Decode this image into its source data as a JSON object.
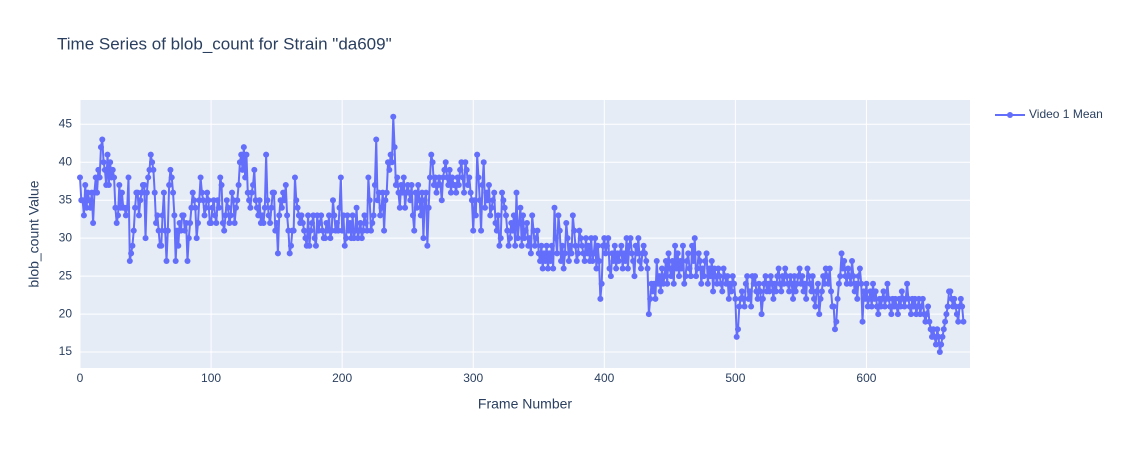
{
  "chart_data": {
    "type": "line",
    "title": "Time Series of blob_count for Strain \"da609\"",
    "x_label": "Frame Number",
    "y_label": "blob_count Value",
    "x": [
      0,
      1,
      2,
      3,
      4,
      5,
      6,
      7,
      8,
      9,
      10,
      11,
      12,
      13,
      14,
      15,
      16,
      17,
      18,
      19,
      20,
      21,
      22,
      23,
      24,
      25,
      26,
      27,
      28,
      29,
      30,
      31,
      32,
      33,
      34,
      35,
      36,
      37,
      38,
      39,
      40,
      41,
      42,
      43,
      44,
      45,
      46,
      47,
      48,
      49,
      50,
      51,
      52,
      53,
      54,
      55,
      56,
      57,
      58,
      59,
      60,
      61,
      62,
      63,
      64,
      65,
      66,
      67,
      68,
      69,
      70,
      71,
      72,
      73,
      74,
      75,
      76,
      77,
      78,
      79,
      80,
      81,
      82,
      83,
      84,
      85,
      86,
      87,
      88,
      89,
      90,
      91,
      92,
      93,
      94,
      95,
      96,
      97,
      98,
      99,
      100,
      101,
      102,
      103,
      104,
      105,
      106,
      107,
      108,
      109,
      110,
      111,
      112,
      113,
      114,
      115,
      116,
      117,
      118,
      119,
      120,
      121,
      122,
      123,
      124,
      125,
      126,
      127,
      128,
      129,
      130,
      131,
      132,
      133,
      134,
      135,
      136,
      137,
      138,
      139,
      140,
      141,
      142,
      143,
      144,
      145,
      146,
      147,
      148,
      149,
      150,
      151,
      152,
      153,
      154,
      155,
      156,
      157,
      158,
      159,
      160,
      161,
      162,
      163,
      164,
      165,
      166,
      167,
      168,
      169,
      170,
      171,
      172,
      173,
      174,
      175,
      176,
      177,
      178,
      179,
      180,
      181,
      182,
      183,
      184,
      185,
      186,
      187,
      188,
      189,
      190,
      191,
      192,
      193,
      194,
      195,
      196,
      197,
      198,
      199,
      200,
      201,
      202,
      203,
      204,
      205,
      206,
      207,
      208,
      209,
      210,
      211,
      212,
      213,
      214,
      215,
      216,
      217,
      218,
      219,
      220,
      221,
      222,
      223,
      224,
      225,
      226,
      227,
      228,
      229,
      230,
      231,
      232,
      233,
      234,
      235,
      236,
      237,
      238,
      239,
      240,
      241,
      242,
      243,
      244,
      245,
      246,
      247,
      248,
      249,
      250,
      251,
      252,
      253,
      254,
      255,
      256,
      257,
      258,
      259,
      260,
      261,
      262,
      263,
      264,
      265,
      266,
      267,
      268,
      269,
      270,
      271,
      272,
      273,
      274,
      275,
      276,
      277,
      278,
      279,
      280,
      281,
      282,
      283,
      284,
      285,
      286,
      287,
      288,
      289,
      290,
      291,
      292,
      293,
      294,
      295,
      296,
      297,
      298,
      299,
      300,
      301,
      302,
      303,
      304,
      305,
      306,
      307,
      308,
      309,
      310,
      311,
      312,
      313,
      314,
      315,
      316,
      317,
      318,
      319,
      320,
      321,
      322,
      323,
      324,
      325,
      326,
      327,
      328,
      329,
      330,
      331,
      332,
      333,
      334,
      335,
      336,
      337,
      338,
      339,
      340,
      341,
      342,
      343,
      344,
      345,
      346,
      347,
      348,
      349,
      350,
      351,
      352,
      353,
      354,
      355,
      356,
      357,
      358,
      359,
      360,
      361,
      362,
      363,
      364,
      365,
      366,
      367,
      368,
      369,
      370,
      371,
      372,
      373,
      374,
      375,
      376,
      377,
      378,
      379,
      380,
      381,
      382,
      383,
      384,
      385,
      386,
      387,
      388,
      389,
      390,
      391,
      392,
      393,
      394,
      395,
      396,
      397,
      398,
      399,
      400,
      401,
      402,
      403,
      404,
      405,
      406,
      407,
      408,
      409,
      410,
      411,
      412,
      413,
      414,
      415,
      416,
      417,
      418,
      419,
      420,
      421,
      422,
      423,
      424,
      425,
      426,
      427,
      428,
      429,
      430,
      431,
      432,
      433,
      434,
      435,
      436,
      437,
      438,
      439,
      440,
      441,
      442,
      443,
      444,
      445,
      446,
      447,
      448,
      449,
      450,
      451,
      452,
      453,
      454,
      455,
      456,
      457,
      458,
      459,
      460,
      461,
      462,
      463,
      464,
      465,
      466,
      467,
      468,
      469,
      470,
      471,
      472,
      473,
      474,
      475,
      476,
      477,
      478,
      479,
      480,
      481,
      482,
      483,
      484,
      485,
      486,
      487,
      488,
      489,
      490,
      491,
      492,
      493,
      494,
      495,
      496,
      497,
      498,
      499,
      500,
      501,
      502,
      503,
      504,
      505,
      506,
      507,
      508,
      509,
      510,
      511,
      512,
      513,
      514,
      515,
      516,
      517,
      518,
      519,
      520,
      521,
      522,
      523,
      524,
      525,
      526,
      527,
      528,
      529,
      530,
      531,
      532,
      533,
      534,
      535,
      536,
      537,
      538,
      539,
      540,
      541,
      542,
      543,
      544,
      545,
      546,
      547,
      548,
      549,
      550,
      551,
      552,
      553,
      554,
      555,
      556,
      557,
      558,
      559,
      560,
      561,
      562,
      563,
      564,
      565,
      566,
      567,
      568,
      569,
      570,
      571,
      572,
      573,
      574,
      575,
      576,
      577,
      578,
      579,
      580,
      581,
      582,
      583,
      584,
      585,
      586,
      587,
      588,
      589,
      590,
      591,
      592,
      593,
      594,
      595,
      596,
      597,
      598,
      599,
      600,
      601,
      602,
      603,
      604,
      605,
      606,
      607,
      608,
      609,
      610,
      611,
      612,
      613,
      614,
      615,
      616,
      617,
      618,
      619,
      620,
      621,
      622,
      623,
      624,
      625,
      626,
      627,
      628,
      629,
      630,
      631,
      632,
      633,
      634,
      635,
      636,
      637,
      638,
      639,
      640,
      641,
      642,
      643,
      644,
      645,
      646,
      647,
      648,
      649,
      650,
      651,
      652,
      653,
      654,
      655,
      656,
      657,
      658,
      659,
      660,
      661,
      662,
      663,
      664,
      665,
      666,
      667,
      668,
      669,
      670,
      671,
      672,
      673,
      674
    ],
    "series": [
      {
        "name": "Video 1 Mean",
        "color": "#636efa",
        "values": [
          38,
          35,
          35,
          33,
          37,
          34,
          36,
          35,
          34,
          36,
          32,
          36,
          38,
          36,
          39,
          38,
          42,
          43,
          40,
          39,
          37,
          41,
          37,
          40,
          38,
          39,
          38,
          34,
          32,
          33,
          37,
          34,
          36,
          34,
          34,
          33,
          34,
          38,
          27,
          28,
          29,
          31,
          34,
          36,
          36,
          33,
          35,
          36,
          37,
          37,
          30,
          36,
          38,
          39,
          41,
          40,
          39,
          36,
          32,
          33,
          31,
          29,
          29,
          33,
          36,
          31,
          27,
          31,
          37,
          39,
          38,
          36,
          33,
          27,
          31,
          29,
          32,
          31,
          33,
          33,
          31,
          32,
          27,
          30,
          32,
          34,
          36,
          35,
          34,
          30,
          32,
          35,
          38,
          36,
          35,
          33,
          34,
          36,
          35,
          32,
          32,
          34,
          35,
          33,
          32,
          35,
          34,
          38,
          37,
          32,
          31,
          33,
          35,
          34,
          32,
          33,
          36,
          35,
          32,
          34,
          35,
          37,
          40,
          41,
          39,
          42,
          38,
          41,
          36,
          35,
          34,
          36,
          37,
          39,
          35,
          34,
          33,
          35,
          32,
          33,
          32,
          34,
          41,
          35,
          33,
          32,
          34,
          36,
          36,
          31,
          32,
          28,
          33,
          35,
          34,
          36,
          35,
          37,
          33,
          31,
          28,
          29,
          31,
          31,
          38,
          35,
          34,
          33,
          32,
          33,
          32,
          31,
          30,
          29,
          33,
          29,
          31,
          32,
          33,
          30,
          29,
          33,
          31,
          32,
          33,
          31,
          30,
          30,
          32,
          31,
          33,
          30,
          31,
          35,
          33,
          31,
          32,
          31,
          34,
          38,
          31,
          33,
          29,
          30,
          33,
          31,
          32,
          30,
          33,
          30,
          31,
          34,
          30,
          31,
          32,
          30,
          31,
          33,
          32,
          31,
          38,
          35,
          31,
          32,
          33,
          37,
          43,
          35,
          36,
          33,
          34,
          36,
          31,
          35,
          36,
          40,
          39,
          41,
          40,
          46,
          42,
          37,
          38,
          36,
          34,
          37,
          36,
          38,
          34,
          36,
          37,
          36,
          35,
          37,
          33,
          31,
          36,
          34,
          37,
          35,
          33,
          36,
          30,
          35,
          36,
          29,
          34,
          38,
          41,
          40,
          37,
          38,
          36,
          37,
          38,
          37,
          35,
          38,
          39,
          40,
          38,
          37,
          39,
          36,
          38,
          37,
          37,
          36,
          38,
          37,
          39,
          40,
          38,
          36,
          40,
          39,
          37,
          38,
          36,
          35,
          31,
          35,
          33,
          41,
          38,
          35,
          31,
          37,
          40,
          34,
          36,
          35,
          37,
          33,
          34,
          35,
          36,
          32,
          31,
          33,
          29,
          30,
          36,
          35,
          34,
          33,
          31,
          29,
          30,
          32,
          31,
          33,
          29,
          36,
          30,
          32,
          34,
          29,
          33,
          30,
          31,
          32,
          29,
          30,
          28,
          33,
          31,
          29,
          30,
          31,
          28,
          27,
          29,
          26,
          28,
          27,
          29,
          26,
          28,
          27,
          29,
          26,
          34,
          30,
          28,
          33,
          31,
          27,
          29,
          26,
          28,
          32,
          30,
          27,
          29,
          28,
          33,
          31,
          29,
          27,
          28,
          31,
          30,
          29,
          28,
          27,
          30,
          28,
          29,
          27,
          30,
          27,
          28,
          30,
          26,
          29,
          27,
          22,
          24,
          29,
          30,
          28,
          29,
          30,
          26,
          25,
          28,
          27,
          29,
          26,
          28,
          27,
          28,
          29,
          26,
          28,
          27,
          30,
          26,
          29,
          30,
          28,
          27,
          25,
          29,
          28,
          30,
          27,
          26,
          28,
          29,
          28,
          27,
          26,
          20,
          22,
          24,
          23,
          24,
          22,
          27,
          24,
          25,
          23,
          26,
          24,
          25,
          27,
          24,
          28,
          26,
          25,
          27,
          24,
          29,
          26,
          28,
          25,
          27,
          26,
          29,
          24,
          25,
          27,
          28,
          26,
          25,
          29,
          27,
          30,
          25,
          26,
          28,
          27,
          24,
          26,
          25,
          27,
          28,
          24,
          26,
          25,
          27,
          23,
          26,
          25,
          24,
          26,
          25,
          24,
          23,
          26,
          25,
          24,
          25,
          22,
          24,
          23,
          25,
          24,
          22,
          17,
          18,
          21,
          22,
          23,
          22,
          21,
          24,
          25,
          22,
          23,
          21,
          25,
          24,
          25,
          23,
          22,
          24,
          23,
          20,
          22,
          24,
          25,
          23,
          24,
          23,
          25,
          24,
          22,
          24,
          23,
          25,
          26,
          24,
          23,
          25,
          24,
          26,
          25,
          24,
          23,
          25,
          24,
          22,
          25,
          23,
          24,
          25,
          26,
          24,
          25,
          23,
          24,
          22,
          26,
          25,
          24,
          23,
          25,
          22,
          21,
          23,
          24,
          20,
          22,
          23,
          25,
          24,
          26,
          25,
          24,
          26,
          23,
          21,
          21,
          18,
          19,
          22,
          24,
          25,
          28,
          26,
          27,
          25,
          24,
          26,
          25,
          24,
          27,
          25,
          23,
          24,
          22,
          25,
          26,
          24,
          19,
          23,
          22,
          24,
          21,
          22,
          23,
          21,
          24,
          22,
          23,
          21,
          20,
          22,
          21,
          22,
          23,
          21,
          22,
          24,
          22,
          21,
          20,
          22,
          21,
          22,
          21,
          20,
          22,
          21,
          23,
          22,
          21,
          22,
          24,
          22,
          21,
          20,
          22,
          21,
          22,
          20,
          21,
          22,
          20,
          21,
          22,
          20,
          19,
          20,
          21,
          19,
          18,
          17,
          18,
          17,
          16,
          18,
          17,
          15,
          16,
          17,
          18,
          19,
          20,
          21,
          23,
          23,
          22,
          21,
          22,
          21,
          20,
          19,
          21,
          22,
          21,
          19
        ]
      }
    ],
    "xlim": [
      0,
      679
    ],
    "ylim": [
      12.9,
      48.2
    ],
    "xticks": [
      0,
      100,
      200,
      300,
      400,
      500,
      600
    ],
    "yticks": [
      15,
      20,
      25,
      30,
      35,
      40,
      45
    ],
    "grid": true,
    "legend": "top-right"
  }
}
